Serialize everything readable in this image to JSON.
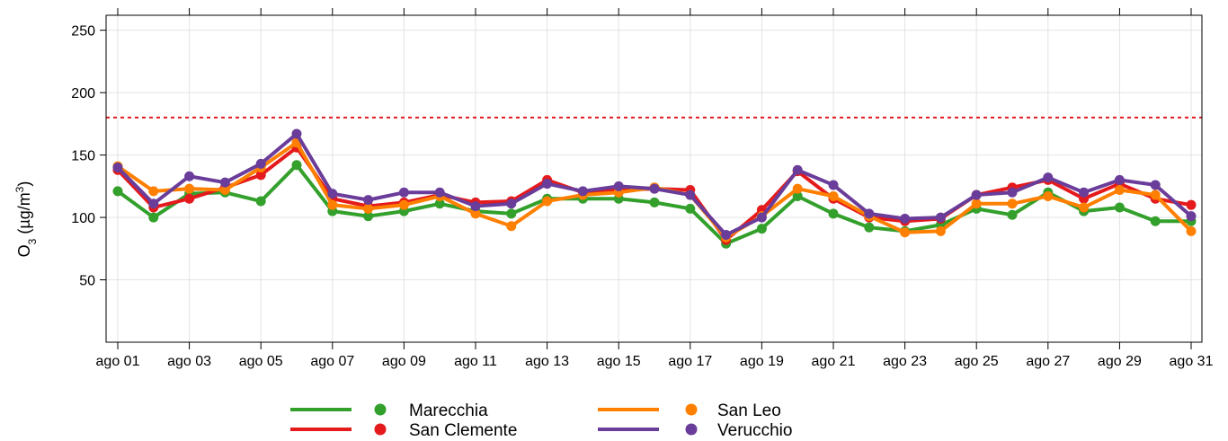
{
  "chart_data": {
    "type": "line",
    "ylabel": {
      "base": "O",
      "sub": "3",
      "unit_pre": " (µg/m",
      "sup": "3",
      "unit_post": ")"
    },
    "ylim": [
      0,
      262
    ],
    "yticks": [
      50,
      100,
      150,
      200,
      250
    ],
    "threshold": {
      "value": 180,
      "color": "#e41a1c",
      "style": "dotted"
    },
    "grid": true,
    "legend_position": "bottom",
    "x": [
      "ago 01",
      "ago 02",
      "ago 03",
      "ago 04",
      "ago 05",
      "ago 06",
      "ago 07",
      "ago 08",
      "ago 09",
      "ago 10",
      "ago 11",
      "ago 12",
      "ago 13",
      "ago 14",
      "ago 15",
      "ago 16",
      "ago 17",
      "ago 18",
      "ago 19",
      "ago 20",
      "ago 21",
      "ago 22",
      "ago 23",
      "ago 24",
      "ago 25",
      "ago 26",
      "ago 27",
      "ago 28",
      "ago 29",
      "ago 30",
      "ago 31"
    ],
    "x_tick_labels": [
      "ago 01",
      "ago 03",
      "ago 05",
      "ago 07",
      "ago 09",
      "ago 11",
      "ago 13",
      "ago 15",
      "ago 17",
      "ago 19",
      "ago 21",
      "ago 23",
      "ago 25",
      "ago 27",
      "ago 29",
      "ago 31"
    ],
    "series": [
      {
        "name": "Marecchia",
        "color": "#33a02c",
        "values": [
          121,
          100,
          119,
          120,
          113,
          142,
          105,
          101,
          105,
          111,
          105,
          103,
          115,
          115,
          115,
          112,
          107,
          79,
          91,
          117,
          103,
          92,
          89,
          94,
          107,
          102,
          120,
          105,
          108,
          97,
          97
        ]
      },
      {
        "name": "San Clemente",
        "color": "#e41a1c",
        "values": [
          138,
          108,
          115,
          124,
          134,
          156,
          115,
          109,
          112,
          118,
          112,
          113,
          130,
          120,
          122,
          123,
          122,
          82,
          106,
          137,
          115,
          100,
          97,
          99,
          118,
          124,
          130,
          115,
          127,
          115,
          110
        ]
      },
      {
        "name": "San Leo",
        "color": "#ff7f00",
        "values": [
          141,
          121,
          123,
          122,
          140,
          160,
          110,
          107,
          110,
          117,
          103,
          93,
          113,
          118,
          120,
          124,
          118,
          84,
          101,
          123,
          117,
          101,
          88,
          89,
          111,
          111,
          117,
          108,
          122,
          118,
          89
        ]
      },
      {
        "name": "Verucchio",
        "color": "#6a3d9a",
        "values": [
          140,
          111,
          133,
          128,
          143,
          167,
          119,
          114,
          120,
          120,
          109,
          111,
          127,
          121,
          125,
          123,
          118,
          86,
          100,
          138,
          126,
          103,
          99,
          100,
          118,
          120,
          132,
          120,
          130,
          126,
          101
        ]
      }
    ]
  }
}
